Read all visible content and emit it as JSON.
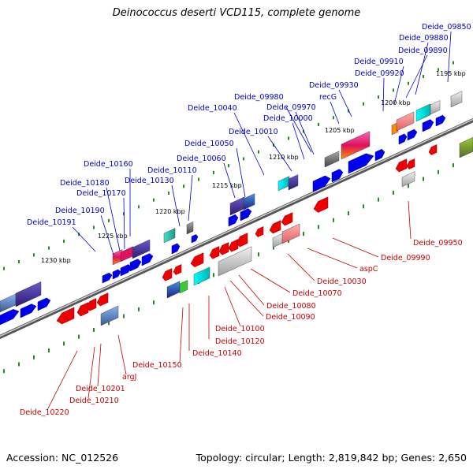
{
  "title": "Deinococcus deserti VCD115, complete genome",
  "accession": "Accession: NC_012526",
  "topology": "Topology: circular; Length: 2,819,842 bp; Genes: 2,650",
  "colors": {
    "forward_label": "#0000cc",
    "reverse_label": "#cc0000",
    "forward_gene": "#0000ee",
    "reverse_gene": "#ee0000",
    "tick": "#228b22",
    "backbone": "#888888"
  },
  "scale": {
    "ticks": [
      "1195 kbp",
      "1200 kbp",
      "1205 kbp",
      "1210 kbp",
      "1215 kbp",
      "1220 kbp",
      "1225 kbp",
      "1230 kbp"
    ]
  },
  "forward_labels": [
    "Deide_09850",
    "Deide_09880",
    "Deide_09890",
    "Deide_09910",
    "Deide_09920",
    "Deide_09930",
    "recG",
    "Deide_09980",
    "Deide_09970",
    "Deide_10000",
    "Deide_10010",
    "Deide_10040",
    "Deide_10050",
    "Deide_10060",
    "Deide_10110",
    "Deide_10130",
    "Deide_10160",
    "Deide_10180",
    "Deide_10170",
    "Deide_10190",
    "Deide_10191"
  ],
  "reverse_labels": [
    "Deide_09950",
    "Deide_09990",
    "aspC",
    "Deide_10030",
    "Deide_10070",
    "Deide_10080",
    "Deide_10090",
    "Deide_10100",
    "Deide_10120",
    "Deide_10140",
    "Deide_10150",
    "argJ",
    "Deide_10201",
    "Deide_10210",
    "Deide_10220"
  ]
}
